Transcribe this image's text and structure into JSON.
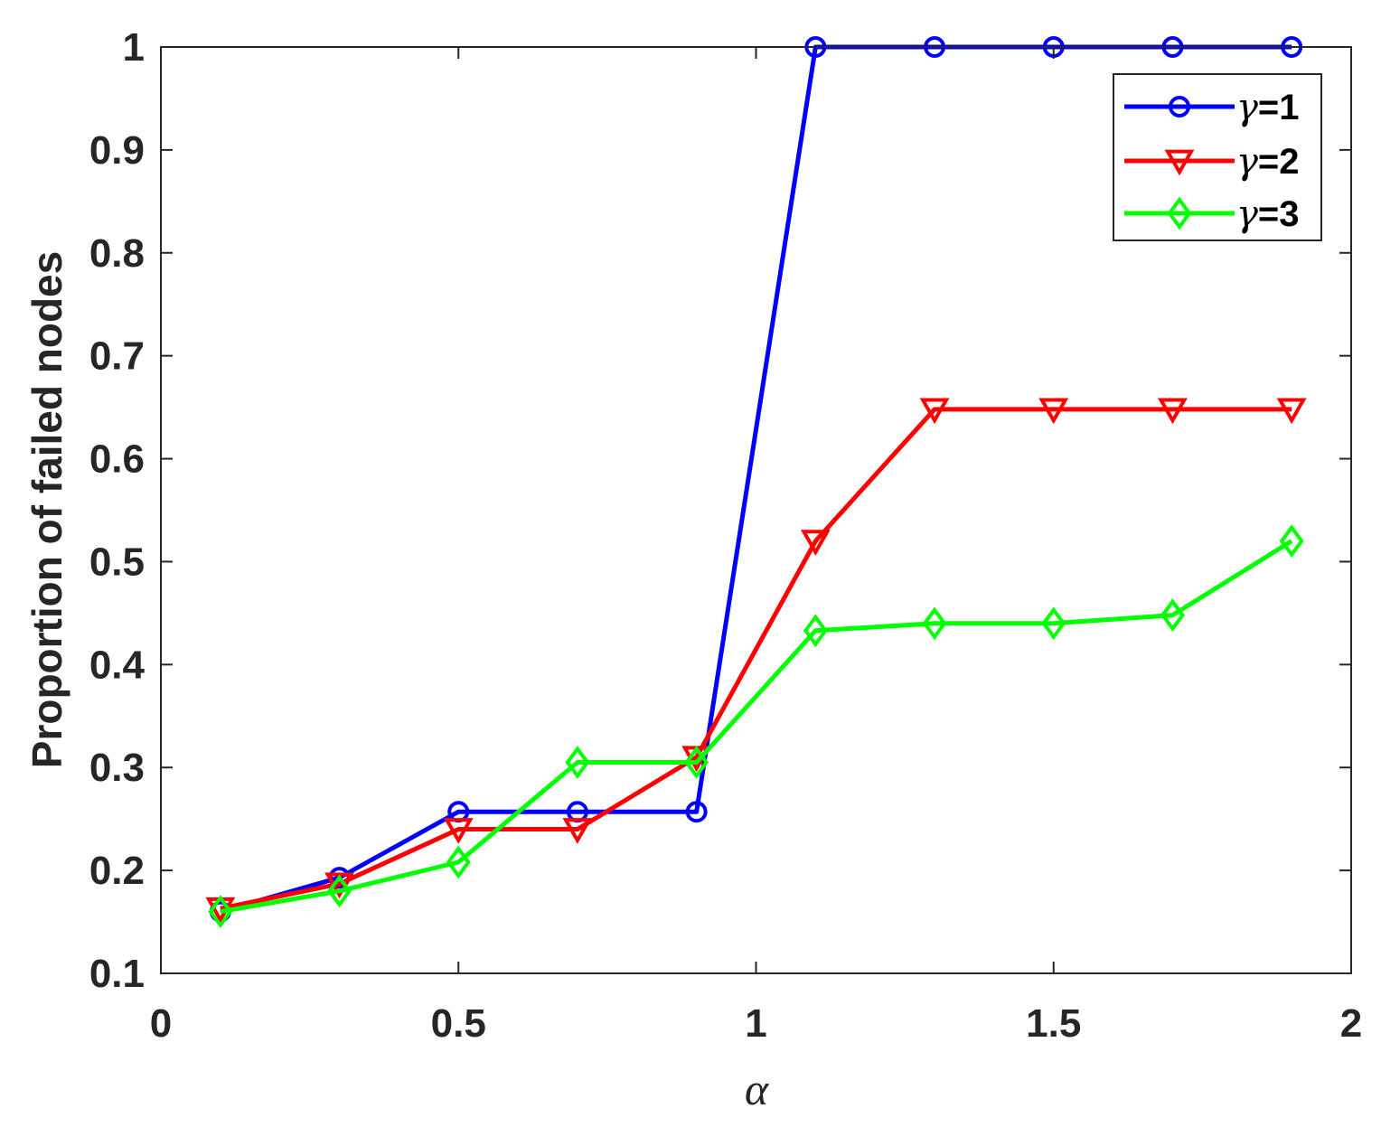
{
  "chart_data": {
    "type": "line",
    "title": "",
    "xlabel": "α",
    "ylabel": "Proportion of failed nodes",
    "xlim": [
      0,
      2
    ],
    "ylim": [
      0.1,
      1
    ],
    "xticks": [
      0,
      0.5,
      1,
      1.5,
      2
    ],
    "xtick_labels": [
      "0",
      "0.5",
      "1",
      "1.5",
      "2"
    ],
    "yticks": [
      0.1,
      0.2,
      0.3,
      0.4,
      0.5,
      0.6,
      0.7,
      0.8,
      0.9,
      1
    ],
    "ytick_labels": [
      "0.1",
      "0.2",
      "0.3",
      "0.4",
      "0.5",
      "0.6",
      "0.7",
      "0.8",
      "0.9",
      "1"
    ],
    "grid": false,
    "legend_position": "top-right",
    "x": [
      0.1,
      0.3,
      0.5,
      0.7,
      0.9,
      1.1,
      1.3,
      1.5,
      1.7,
      1.9
    ],
    "series": [
      {
        "name": "γ=1",
        "legend_symbol": "γ",
        "legend_value": "=1",
        "color": "#0000ff",
        "marker": "circle",
        "values": [
          0.16,
          0.193,
          0.257,
          0.257,
          0.257,
          1.0,
          1.0,
          1.0,
          1.0,
          1.0
        ]
      },
      {
        "name": "γ=2",
        "legend_symbol": "γ",
        "legend_value": "=2",
        "color": "#ff0000",
        "marker": "triangle-down",
        "values": [
          0.163,
          0.187,
          0.24,
          0.24,
          0.31,
          0.52,
          0.648,
          0.648,
          0.648,
          0.648
        ]
      },
      {
        "name": "γ=3",
        "legend_symbol": "γ",
        "legend_value": "=3",
        "color": "#00ff00",
        "marker": "diamond",
        "values": [
          0.16,
          0.18,
          0.208,
          0.305,
          0.305,
          0.433,
          0.44,
          0.44,
          0.448,
          0.52
        ]
      }
    ]
  }
}
